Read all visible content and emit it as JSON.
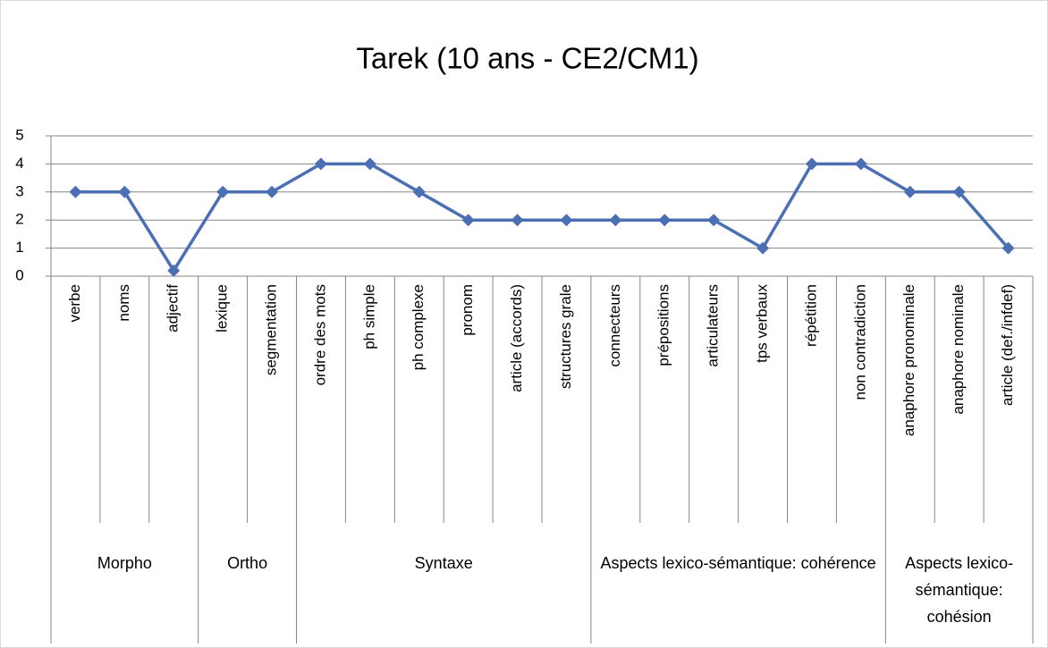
{
  "chart_data": {
    "type": "line",
    "title": "Tarek (10 ans - CE2/CM1)",
    "groups": [
      {
        "name": "Morpho",
        "categories": [
          "verbe",
          "noms",
          "adjectif"
        ]
      },
      {
        "name": "Ortho",
        "categories": [
          "lexique",
          "segmentation"
        ]
      },
      {
        "name": "Syntaxe",
        "categories": [
          "ordre des mots",
          "ph simple",
          "ph complexe",
          "pronom",
          "article (accords)",
          "structures grale"
        ]
      },
      {
        "name": "Aspects lexico-sémantique: cohérence",
        "categories": [
          "connecteurs",
          "prépositions",
          "articulateurs",
          "tps verbaux",
          "répétition",
          "non contradiction"
        ]
      },
      {
        "name": "Aspects lexico-sémantique: cohésion",
        "categories": [
          "anaphore pronominale",
          "anaphore nominale",
          "article (def./infdef)"
        ]
      }
    ],
    "series": [
      {
        "color": "#4a6fb3",
        "values": [
          3,
          3,
          0.2,
          3,
          3,
          4,
          4,
          3,
          2,
          2,
          2,
          2,
          2,
          2,
          1,
          4,
          4,
          3,
          3,
          1
        ]
      }
    ],
    "ylim": [
      0,
      5
    ],
    "yticks": [
      0,
      1,
      2,
      3,
      4,
      5
    ],
    "grid": true
  }
}
